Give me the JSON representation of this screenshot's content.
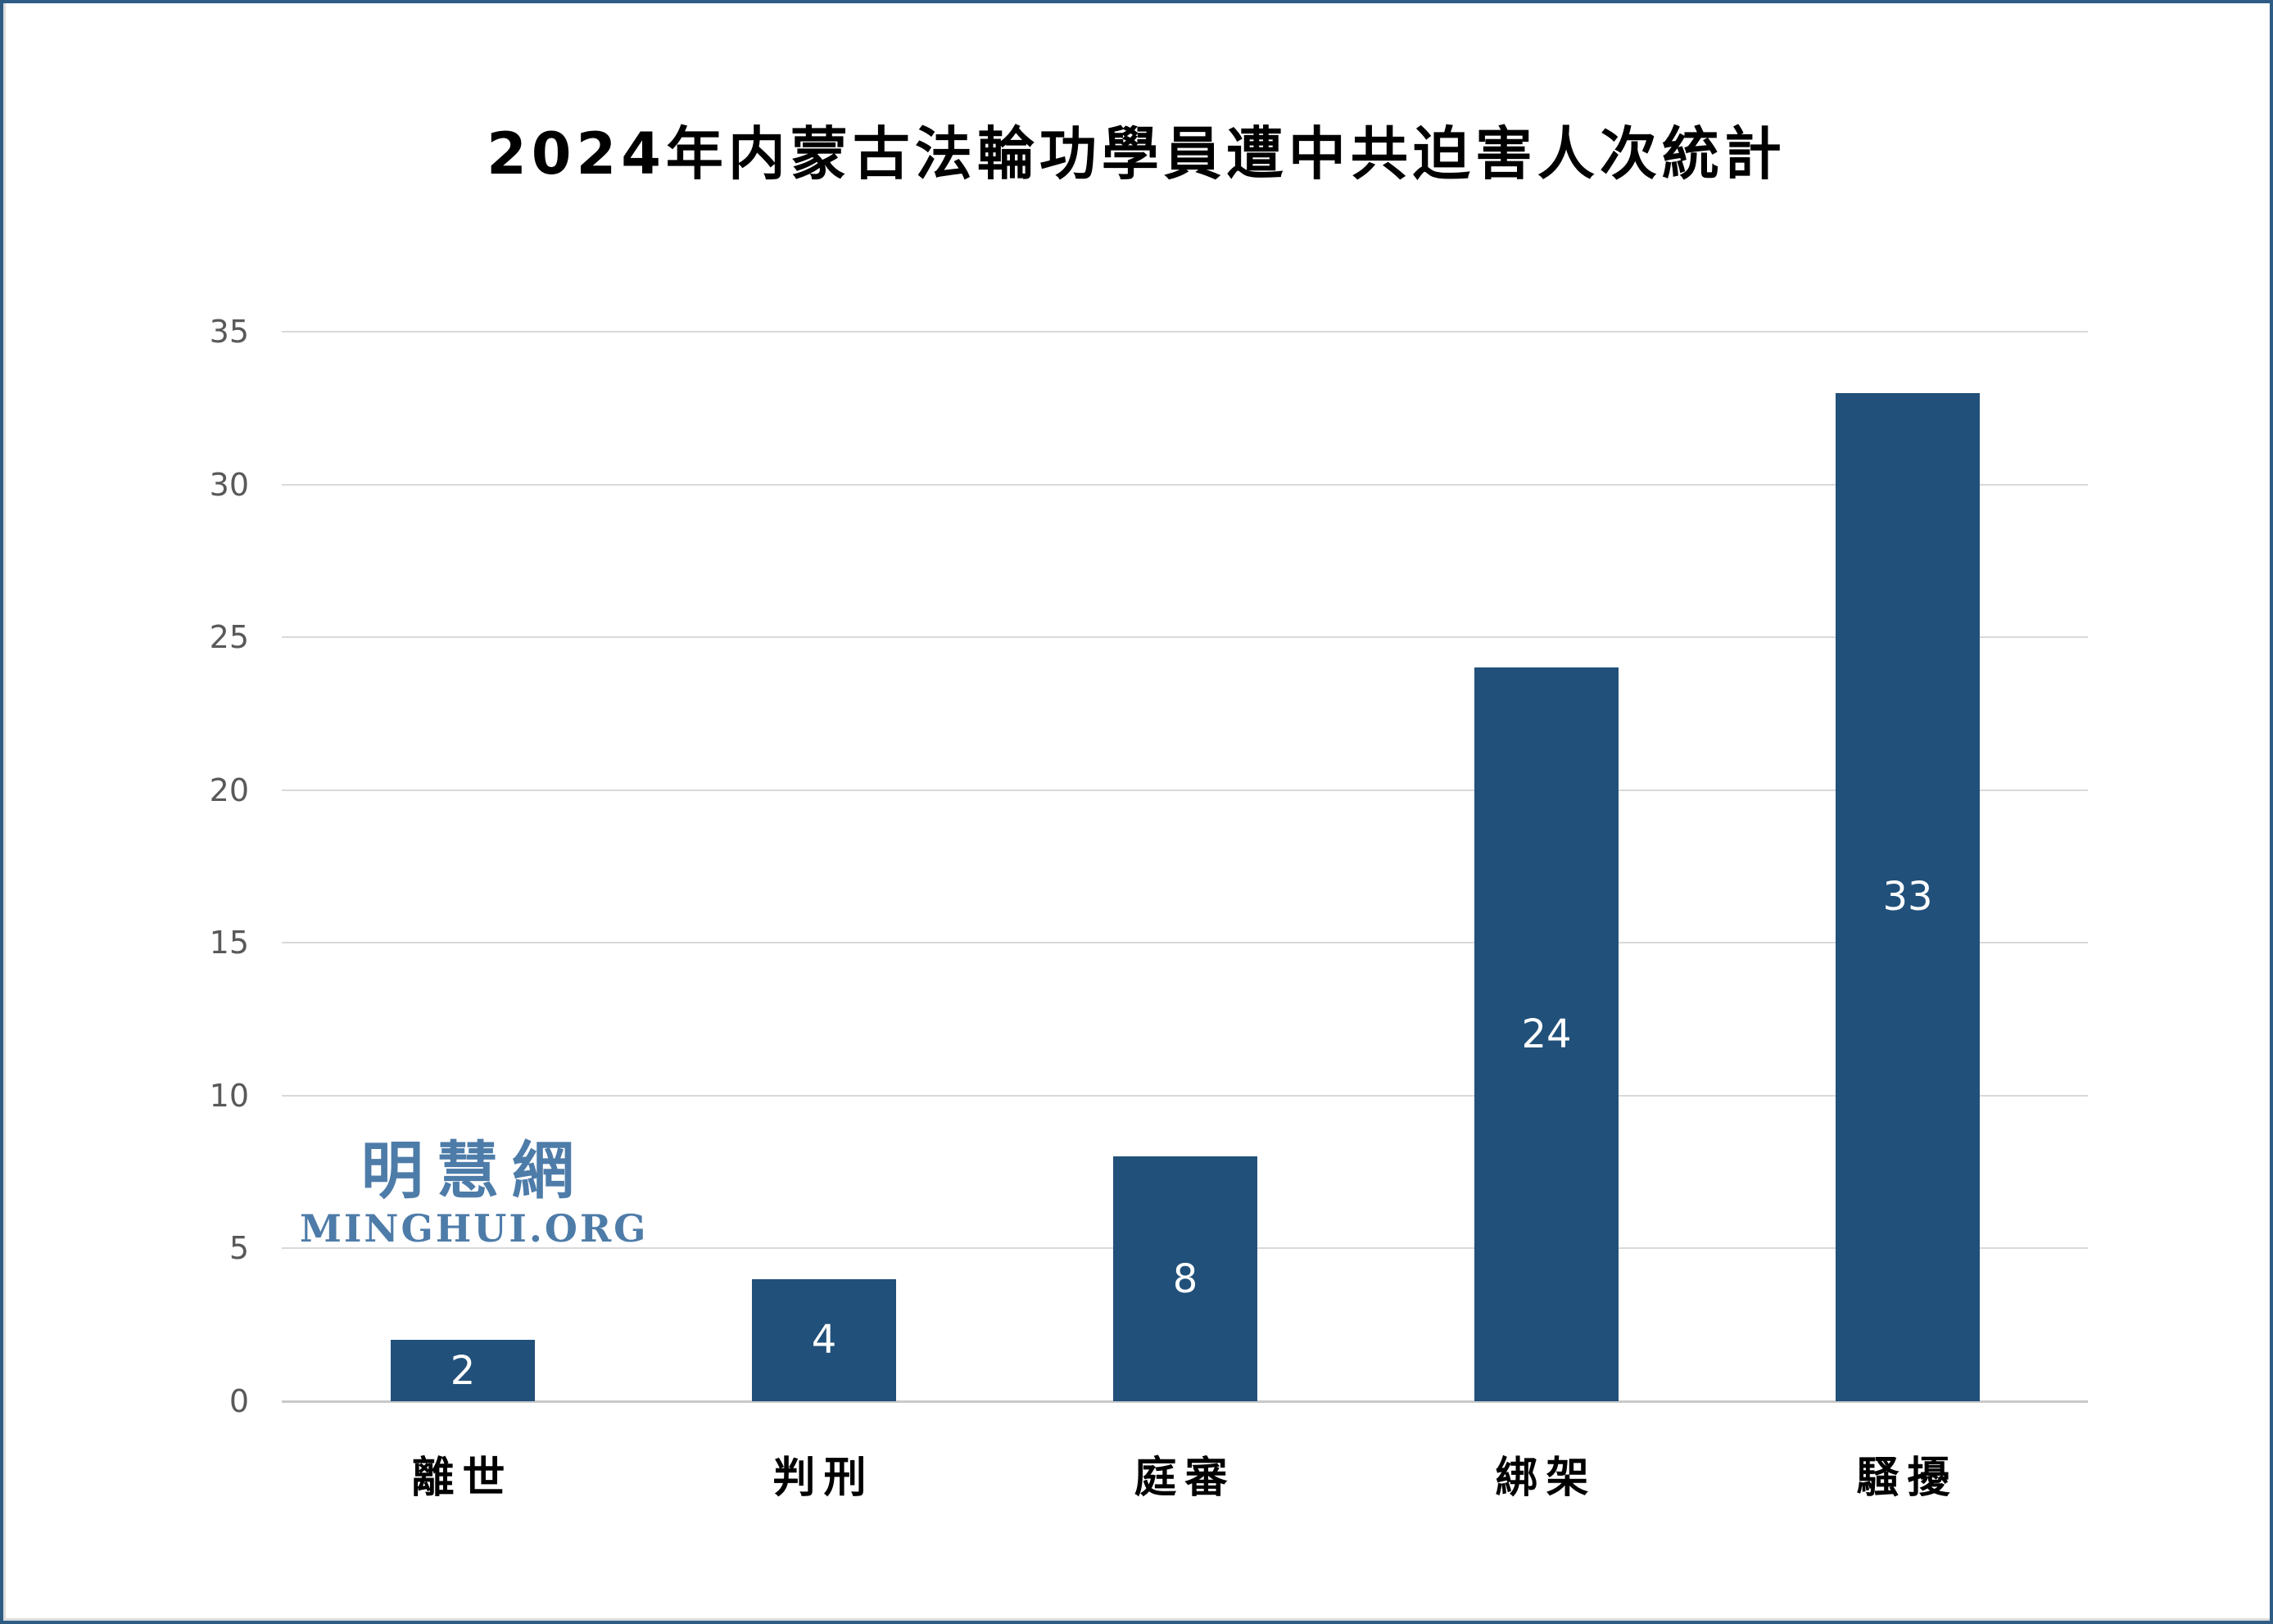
{
  "chart_data": {
    "type": "bar",
    "title": "2024年内蒙古法輪功學員遭中共迫害人次統計",
    "categories": [
      "離世",
      "判刑",
      "庭審",
      "綁架",
      "騷擾"
    ],
    "values": [
      2,
      4,
      8,
      24,
      33
    ],
    "xlabel": "",
    "ylabel": "",
    "ylim": [
      0,
      35
    ],
    "yticks": [
      0,
      5,
      10,
      15,
      20,
      25,
      30,
      35
    ],
    "grid": "horizontal-only",
    "legend_position": "none",
    "bar_color": "#21507A",
    "value_label_color": "#FFFFFF",
    "tick_label_color": "#595959",
    "gridline_color": "#D9D9D9",
    "baseline_color": "#C9C9C9"
  },
  "watermark": {
    "zh": "明慧網",
    "en": "MINGHUI.ORG",
    "color": "#4E7CA9"
  },
  "frame": {
    "border_color": "#2E5C84",
    "background_color": "#FFFFFF"
  }
}
